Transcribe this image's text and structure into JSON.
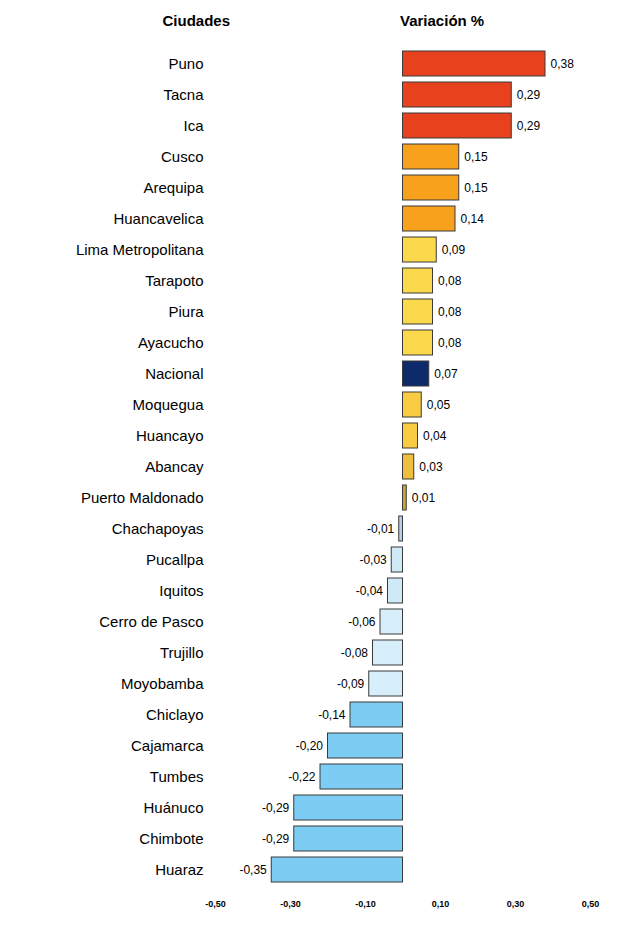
{
  "chart_data": {
    "type": "bar",
    "orientation": "horizontal",
    "xlabel": "Variación %",
    "ylabel": "Ciudades",
    "categories": [
      "Puno",
      "Tacna",
      "Ica",
      "Cusco",
      "Arequipa",
      "Huancavelica",
      "Lima Metropolitana",
      "Tarapoto",
      "Piura",
      "Ayacucho",
      "Nacional",
      "Moquegua",
      "Huancayo",
      "Abancay",
      "Puerto Maldonado",
      "Chachapoyas",
      "Pucallpa",
      "Iquitos",
      "Cerro de Pasco",
      "Trujillo",
      "Moyobamba",
      "Chiclayo",
      "Cajamarca",
      "Tumbes",
      "Huánuco",
      "Chimbote",
      "Huaraz"
    ],
    "values": [
      0.38,
      0.29,
      0.29,
      0.15,
      0.15,
      0.14,
      0.09,
      0.08,
      0.08,
      0.08,
      0.07,
      0.05,
      0.04,
      0.03,
      0.01,
      -0.01,
      -0.03,
      -0.04,
      -0.06,
      -0.08,
      -0.09,
      -0.14,
      -0.2,
      -0.22,
      -0.29,
      -0.29,
      -0.35
    ],
    "value_labels": [
      "0,38",
      "0,29",
      "0,29",
      "0,15",
      "0,15",
      "0,14",
      "0,09",
      "0,08",
      "0,08",
      "0,08",
      "0,07",
      "0,05",
      "0,04",
      "0,03",
      "0,01",
      "-0,01",
      "-0,03",
      "-0,04",
      "-0,06",
      "-0,08",
      "-0,09",
      "-0,14",
      "-0,20",
      "-0,22",
      "-0,29",
      "-0,29",
      "-0,35"
    ],
    "colors": [
      "#e8411d",
      "#e8411d",
      "#e8411d",
      "#f7a11c",
      "#f7a11c",
      "#f7a11c",
      "#fcd94b",
      "#fcd94b",
      "#fcd94b",
      "#fcd94b",
      "#0d2a6b",
      "#f9cc44",
      "#f9cc44",
      "#eebf3c",
      "#c9a43e",
      "#b9cfe3",
      "#cfe9f7",
      "#cfe9f7",
      "#d6effa",
      "#d6effa",
      "#d6effa",
      "#7dccf4",
      "#7dccf4",
      "#7dccf4",
      "#7dccf4",
      "#7dccf4",
      "#7dccf4"
    ],
    "xlim": [
      -0.5,
      0.5
    ],
    "xticks": [
      {
        "value": -0.5,
        "label": "-0,50"
      },
      {
        "value": -0.3,
        "label": "-0,30"
      },
      {
        "value": -0.1,
        "label": "-0,10"
      },
      {
        "value": 0.1,
        "label": "0,10"
      },
      {
        "value": 0.3,
        "label": "0,30"
      },
      {
        "value": 0.5,
        "label": "0,50"
      }
    ],
    "grid": false,
    "data_labels": true
  }
}
